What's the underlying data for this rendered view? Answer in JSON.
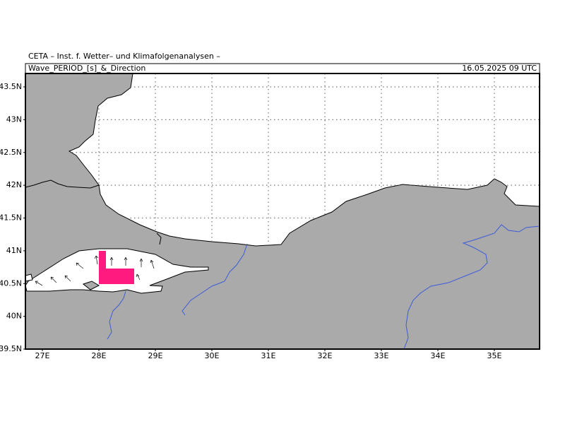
{
  "header": {
    "institute": "CETA – Inst. f. Wetter– und Klimafolgenanalysen –",
    "title": "Wave_PERIOD_[s]_&_Direction",
    "timestamp": "16.05.2025 09 UTC"
  },
  "axes": {
    "lat_labels": [
      "43.5N",
      "43N",
      "42.5N",
      "42N",
      "41.5N",
      "41N",
      "40.5N",
      "40N",
      "39.5N"
    ],
    "lon_labels": [
      "27E",
      "28E",
      "29E",
      "30E",
      "31E",
      "32E",
      "33E",
      "34E",
      "35E"
    ]
  }
}
